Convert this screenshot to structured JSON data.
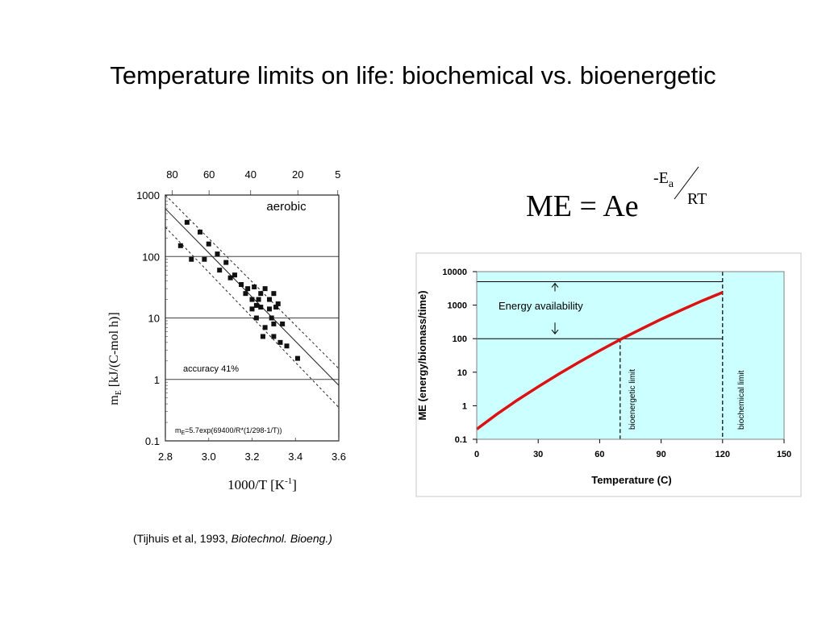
{
  "slide": {
    "title": "Temperature limits on life:  biochemical vs. bioenergetic",
    "citation_prefix": "(Tijhuis et al, 1993, ",
    "citation_journal": "Biotechnol. Bioeng.)"
  },
  "equation": {
    "lhs": "ME = Ae",
    "exp_numerator": "-E",
    "exp_sub": "a",
    "exp_denominator": "RT"
  },
  "chart_data": [
    {
      "type": "scatter",
      "title": "aerobic",
      "xlabel": "1000/T   [K",
      "xlabel_sup": "-1",
      "xlabel_end": "]",
      "ylabel": "m",
      "ylabel_sub": "E",
      "ylabel_units": "[kJ/(C-mol h)]",
      "x_scale": "reciprocal temperature",
      "y_scale": "log",
      "xlim": [
        2.8,
        3.6
      ],
      "ylim": [
        0.1,
        1000
      ],
      "x_ticks": [
        "2.8",
        "3.0",
        "3.2",
        "3.4",
        "3.6"
      ],
      "x_tick_values": [
        2.8,
        3.0,
        3.2,
        3.4,
        3.6
      ],
      "y_ticks": [
        "0.1",
        "1",
        "10",
        "100",
        "1000"
      ],
      "y_tick_values": [
        0.1,
        1,
        10,
        100,
        1000
      ],
      "top_ticks": [
        "80",
        "60",
        "40",
        "20",
        "5"
      ],
      "top_tick_values_celsius": [
        80,
        60,
        40,
        20,
        5
      ],
      "gridlines": "horizontal",
      "annotations": {
        "accuracy": "accuracy 41%",
        "formula": "m",
        "formula_sub": "E",
        "formula_rest": "=5.7exp(69400/R*(1/298-1/T))"
      },
      "fit": [
        {
          "name": "",
          "style": "solid",
          "x": [
            2.8,
            3.6
          ],
          "y": [
            600,
            0.8
          ]
        },
        {
          "name": "",
          "style": "dashed",
          "x": [
            2.8,
            3.6
          ],
          "y": [
            1000,
            1.5
          ]
        },
        {
          "name": "",
          "style": "dashed",
          "x": [
            2.8,
            3.6
          ],
          "y": [
            300,
            0.35
          ]
        }
      ],
      "points": {
        "x": [
          2.87,
          2.9,
          2.92,
          2.96,
          2.98,
          3.0,
          3.04,
          3.05,
          3.08,
          3.1,
          3.12,
          3.15,
          3.17,
          3.18,
          3.2,
          3.2,
          3.21,
          3.22,
          3.22,
          3.23,
          3.24,
          3.24,
          3.25,
          3.26,
          3.26,
          3.28,
          3.28,
          3.29,
          3.3,
          3.3,
          3.3,
          3.31,
          3.32,
          3.33,
          3.34,
          3.36,
          3.41
        ],
        "y": [
          150,
          360,
          90,
          250,
          90,
          160,
          110,
          60,
          80,
          45,
          50,
          35,
          25,
          30,
          20,
          14,
          32,
          16,
          10,
          20,
          25,
          15,
          5,
          30,
          7,
          14,
          20,
          10,
          25,
          8,
          5,
          15,
          17,
          4,
          8,
          3.5,
          2.2
        ]
      }
    },
    {
      "type": "line",
      "xlabel": "Temperature (C)",
      "ylabel": "ME (energy/biomass/time)",
      "y_scale": "log",
      "xlim": [
        0,
        150
      ],
      "ylim": [
        0.1,
        10000
      ],
      "x_ticks": [
        "0",
        "30",
        "60",
        "90",
        "120",
        "150"
      ],
      "x_tick_values": [
        0,
        30,
        60,
        90,
        120,
        150
      ],
      "y_ticks": [
        "0.1",
        "1",
        "10",
        "100",
        "1000",
        "10000"
      ],
      "y_tick_values": [
        0.1,
        1,
        10,
        100,
        1000,
        10000
      ],
      "background": "#ccffff",
      "series": [
        {
          "name": "",
          "color": "#dd1111",
          "x": [
            0,
            10,
            20,
            30,
            40,
            50,
            60,
            70,
            80,
            90,
            100,
            110,
            120
          ],
          "y": [
            0.2,
            0.57,
            1.5,
            3.7,
            8.8,
            20,
            44,
            94,
            190,
            380,
            720,
            1350,
            2400
          ]
        }
      ],
      "reference_lines": {
        "upper_level": 5000,
        "lower_level": 100,
        "bioenergetic_x": 70,
        "biochemical_x": 120
      },
      "annotations": {
        "energy": "Energy availability",
        "bioenergetic": "bioenergetic limit",
        "biochemical": "biochemical limit"
      }
    }
  ]
}
